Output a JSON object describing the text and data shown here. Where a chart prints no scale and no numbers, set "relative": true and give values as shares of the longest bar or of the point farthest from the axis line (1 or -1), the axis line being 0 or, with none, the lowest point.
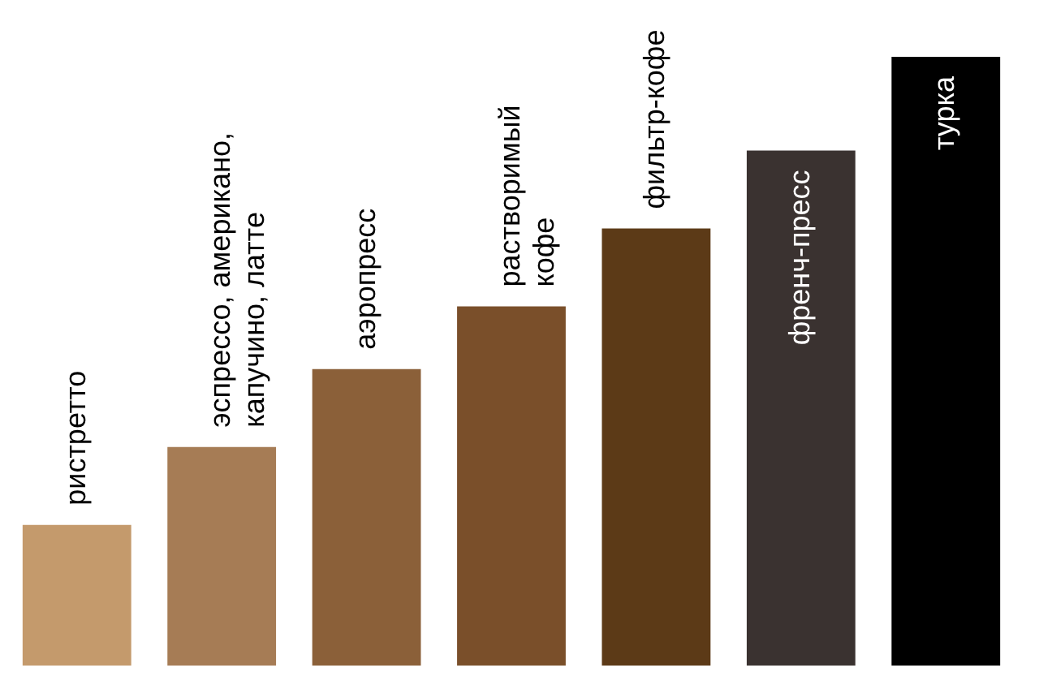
{
  "chart_data": {
    "type": "bar",
    "relative": true,
    "categories": [
      "ристретто",
      "эспрессо, американо,\nкапучино, латте",
      "аэропресс",
      "растворимый\nкофе",
      "фильтр-кофе",
      "френч-пресс",
      "турка"
    ],
    "values": [
      0.231,
      0.359,
      0.487,
      0.59,
      0.718,
      0.846,
      1
    ],
    "colors": [
      "#c49a6c",
      "#a67c55",
      "#8b6039",
      "#7a4f2a",
      "#5c3a17",
      "#3a3230",
      "#000000"
    ]
  }
}
